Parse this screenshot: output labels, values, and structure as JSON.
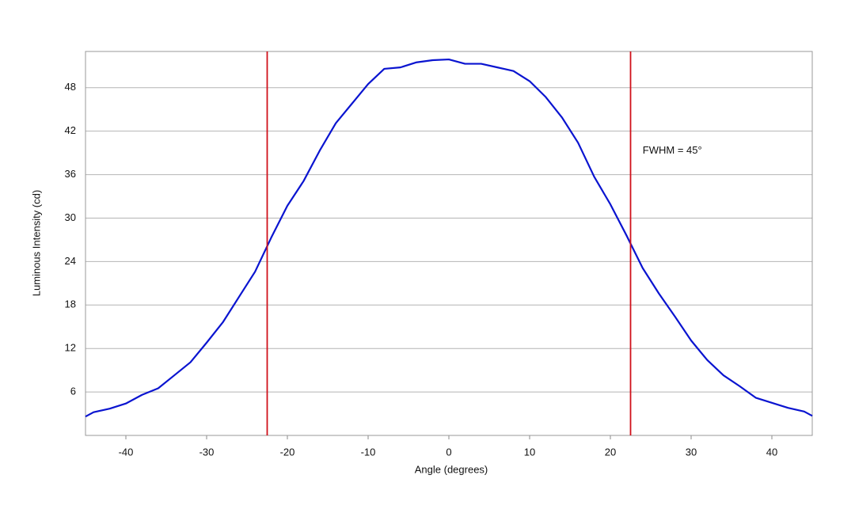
{
  "chart_data": {
    "type": "line",
    "xlabel": "Angle (degrees)",
    "ylabel": "Luminous Intensity (cd)",
    "x": [
      -45,
      -44,
      -42,
      -40,
      -38,
      -36,
      -34,
      -32,
      -30,
      -28,
      -26,
      -24,
      -22,
      -20,
      -18,
      -16,
      -14,
      -12,
      -10,
      -8,
      -6,
      -4,
      -2,
      0,
      2,
      4,
      6,
      8,
      10,
      12,
      14,
      16,
      18,
      20,
      22,
      24,
      26,
      28,
      30,
      32,
      34,
      36,
      38,
      40,
      42,
      44,
      45
    ],
    "series": [
      {
        "color": "#0a14d0",
        "values": [
          2.6,
          3.2,
          3.7,
          4.4,
          5.6,
          6.5,
          8.3,
          10.1,
          12.8,
          15.6,
          19.1,
          22.6,
          27.3,
          31.7,
          35.1,
          39.3,
          43.1,
          45.8,
          48.5,
          50.6,
          50.8,
          51.5,
          51.8,
          51.9,
          51.3,
          51.3,
          50.8,
          50.3,
          48.9,
          46.7,
          43.9,
          40.4,
          35.7,
          31.9,
          27.6,
          23.1,
          19.6,
          16.4,
          13.1,
          10.4,
          8.3,
          6.8,
          5.2,
          4.5,
          3.8,
          3.3,
          2.7
        ]
      }
    ],
    "vlines": [
      -22.5,
      22.5
    ],
    "vline_color": "#d0101a",
    "annotation": {
      "text": "FWHM = 45°",
      "x": 24,
      "y": 39.3
    },
    "xlim": [
      -45,
      45
    ],
    "xticks": [
      -40,
      -30,
      -20,
      -10,
      0,
      10,
      20,
      30,
      40
    ],
    "ylim": [
      0,
      53
    ],
    "yticks": [
      6,
      12,
      18,
      24,
      30,
      36,
      42,
      48
    ],
    "grid": true
  }
}
